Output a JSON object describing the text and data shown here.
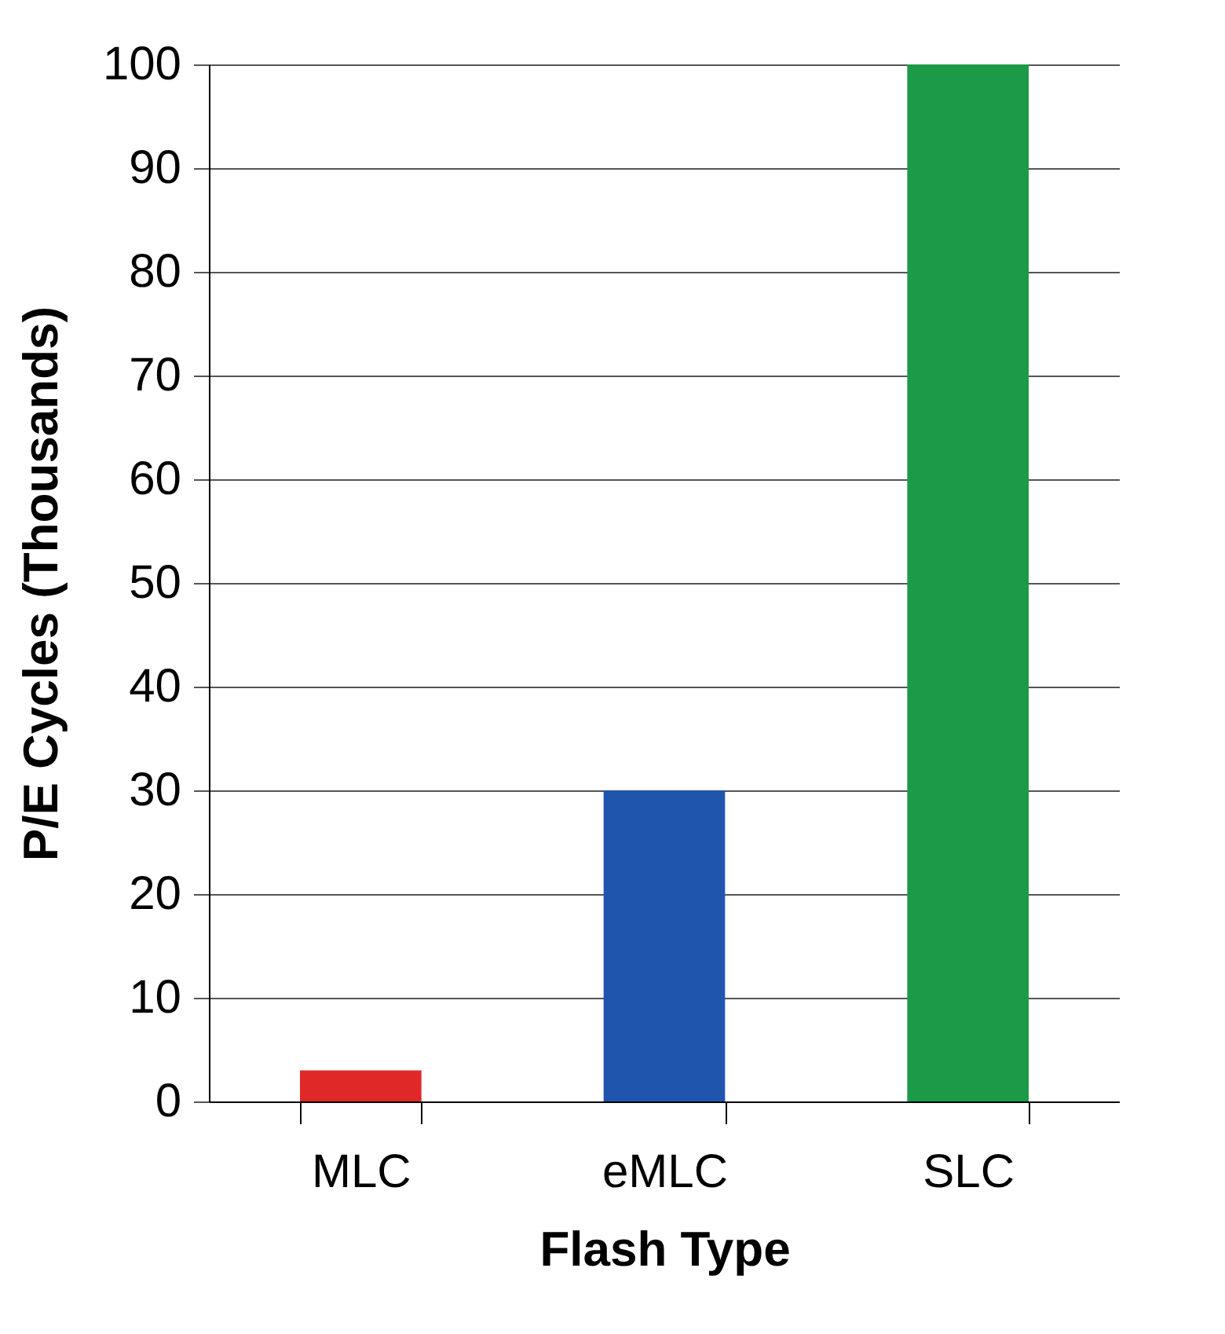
{
  "chart_data": {
    "type": "bar",
    "xlabel": "Flash Type",
    "ylabel": "P/E Cycles (Thousands)",
    "categories": [
      "MLC",
      "eMLC",
      "SLC"
    ],
    "values": [
      3,
      30,
      100
    ],
    "colors": [
      "#e02828",
      "#1f55ad",
      "#1c9a48"
    ],
    "ylim": [
      0,
      100
    ],
    "yticks": [
      0,
      10,
      20,
      30,
      40,
      50,
      60,
      70,
      80,
      90,
      100
    ],
    "grid": "y"
  }
}
